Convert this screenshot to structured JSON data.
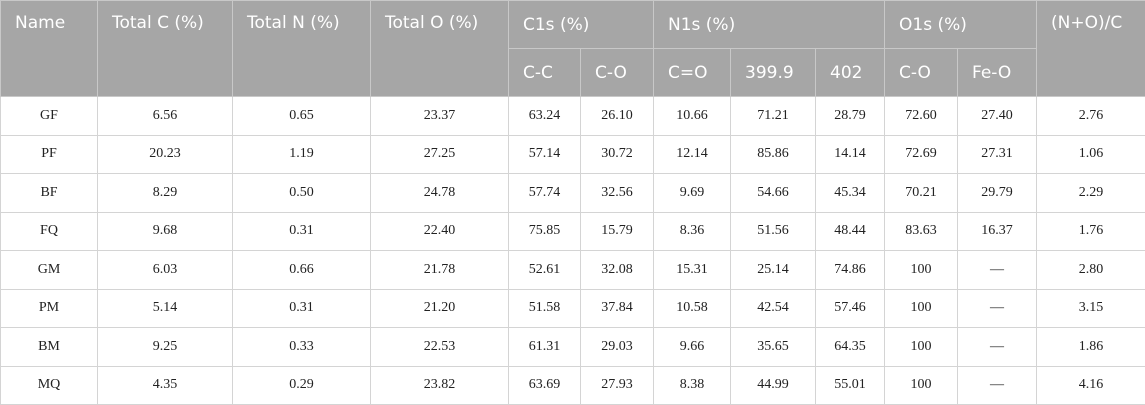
{
  "table": {
    "header": {
      "top": [
        "Name",
        "Total C (%)",
        "Total N (%)",
        "Total O (%)",
        "C1s (%)",
        "N1s (%)",
        "O1s (%)",
        "(N+O)/C"
      ],
      "sub": [
        "C-C",
        "C-O",
        "C=O",
        "399.9",
        "402",
        "C-O",
        "Fe-O"
      ]
    },
    "rows": [
      [
        "GF",
        "6.56",
        "0.65",
        "23.37",
        "63.24",
        "26.10",
        "10.66",
        "71.21",
        "28.79",
        "72.60",
        "27.40",
        "2.76"
      ],
      [
        "PF",
        "20.23",
        "1.19",
        "27.25",
        "57.14",
        "30.72",
        "12.14",
        "85.86",
        "14.14",
        "72.69",
        "27.31",
        "1.06"
      ],
      [
        "BF",
        "8.29",
        "0.50",
        "24.78",
        "57.74",
        "32.56",
        "9.69",
        "54.66",
        "45.34",
        "70.21",
        "29.79",
        "2.29"
      ],
      [
        "FQ",
        "9.68",
        "0.31",
        "22.40",
        "75.85",
        "15.79",
        "8.36",
        "51.56",
        "48.44",
        "83.63",
        "16.37",
        "1.76"
      ],
      [
        "GM",
        "6.03",
        "0.66",
        "21.78",
        "52.61",
        "32.08",
        "15.31",
        "25.14",
        "74.86",
        "100",
        "—",
        "2.80"
      ],
      [
        "PM",
        "5.14",
        "0.31",
        "21.20",
        "51.58",
        "37.84",
        "10.58",
        "42.54",
        "57.46",
        "100",
        "—",
        "3.15"
      ],
      [
        "BM",
        "9.25",
        "0.33",
        "22.53",
        "61.31",
        "29.03",
        "9.66",
        "35.65",
        "64.35",
        "100",
        "—",
        "1.86"
      ],
      [
        "MQ",
        "4.35",
        "0.29",
        "23.82",
        "63.69",
        "27.93",
        "8.38",
        "44.99",
        "55.01",
        "100",
        "—",
        "4.16"
      ]
    ]
  }
}
